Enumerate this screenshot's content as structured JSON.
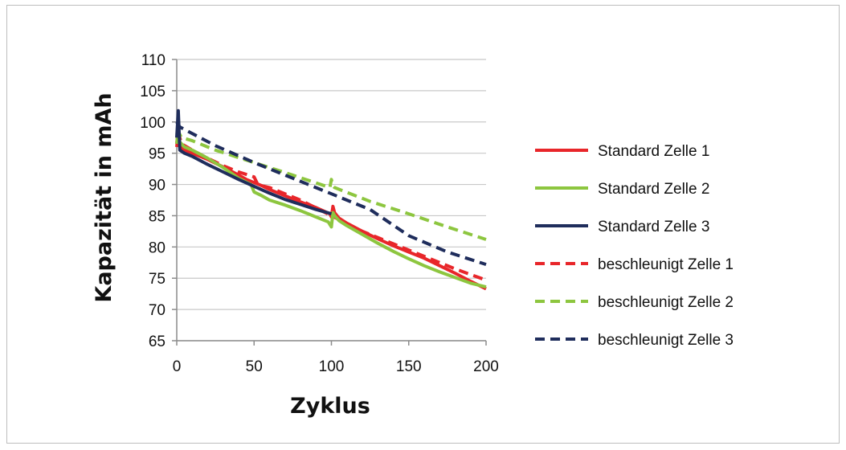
{
  "chart_data": {
    "type": "line",
    "title": "",
    "xlabel": "Zyklus",
    "ylabel": "Kapazität in mAh",
    "xlim": [
      0,
      200
    ],
    "ylim": [
      65,
      110
    ],
    "xticks": [
      0,
      50,
      100,
      150,
      200
    ],
    "yticks": [
      65,
      70,
      75,
      80,
      85,
      90,
      95,
      100,
      105,
      110
    ],
    "grid": "horizontal",
    "legend_position": "right",
    "series": [
      {
        "name": "Standard Zelle 1",
        "color": "#e8262a",
        "dash": "solid",
        "x": [
          0,
          1,
          2,
          5,
          10,
          20,
          30,
          40,
          45,
          50,
          55,
          60,
          70,
          80,
          90,
          99,
          100,
          101,
          102,
          105,
          110,
          120,
          130,
          140,
          150,
          160,
          170,
          180,
          190,
          200
        ],
        "y": [
          96.5,
          99,
          96,
          95.5,
          95,
          94,
          92.8,
          91.5,
          90.8,
          90.3,
          89.8,
          89.2,
          88.2,
          87.2,
          86.3,
          85.3,
          84.8,
          86.5,
          85.5,
          84.6,
          83.8,
          82.5,
          81.3,
          80.2,
          79.2,
          78.2,
          77,
          75.8,
          74.5,
          73.3
        ]
      },
      {
        "name": "Standard Zelle 2",
        "color": "#8dc63f",
        "dash": "solid",
        "x": [
          0,
          1,
          2,
          5,
          10,
          20,
          30,
          40,
          48,
          50,
          55,
          60,
          70,
          80,
          90,
          98,
          100,
          101,
          102,
          105,
          110,
          120,
          130,
          140,
          150,
          160,
          170,
          180,
          190,
          200
        ],
        "y": [
          96.5,
          99,
          96.8,
          96,
          95.5,
          94.2,
          92.7,
          91,
          90,
          88.8,
          88.2,
          87.5,
          86.7,
          85.8,
          84.8,
          84,
          83.2,
          85.5,
          85,
          84.2,
          83.4,
          82,
          80.6,
          79.3,
          78.1,
          77,
          76,
          75.1,
          74.2,
          73.6
        ]
      },
      {
        "name": "Standard Zelle 3",
        "color": "#1f2d5c",
        "dash": "solid",
        "x": [
          0,
          1,
          2,
          5,
          10,
          20,
          30,
          40,
          50,
          60,
          70,
          80,
          90,
          100
        ],
        "y": [
          97.5,
          101.8,
          95.5,
          95,
          94.5,
          93.2,
          92,
          90.8,
          89.7,
          88.6,
          87.6,
          86.8,
          86,
          85.3
        ]
      },
      {
        "name": "beschleunigt Zelle 1",
        "color": "#e8262a",
        "dash": "dashed",
        "x": [
          0,
          1,
          3,
          10,
          20,
          30,
          40,
          50,
          52,
          55,
          60,
          80,
          100,
          120,
          140,
          160,
          180,
          200
        ],
        "y": [
          96,
          98.5,
          96.5,
          95.5,
          94.2,
          93,
          92,
          91.2,
          90.2,
          89.8,
          89.5,
          87.5,
          85,
          82.5,
          80.5,
          78.5,
          76.5,
          74.7
        ]
      },
      {
        "name": "beschleunigt Zelle 2",
        "color": "#8dc63f",
        "dash": "dashed",
        "x": [
          0,
          1,
          3,
          10,
          25,
          50,
          75,
          99,
          100,
          101,
          102,
          125,
          150,
          175,
          200
        ],
        "y": [
          98,
          98.5,
          97.5,
          97,
          95.5,
          93.5,
          91.5,
          89.5,
          90.8,
          89.8,
          89.5,
          87.3,
          85.3,
          83.2,
          81.2
        ]
      },
      {
        "name": "beschleunigt Zelle 3",
        "color": "#1f2d5c",
        "dash": "dashed",
        "x": [
          0,
          2,
          25,
          50,
          75,
          100,
          125,
          150,
          175,
          200
        ],
        "y": [
          100,
          99.2,
          96.2,
          93.5,
          91,
          88.5,
          86,
          81.8,
          79.2,
          77.2
        ]
      }
    ]
  }
}
